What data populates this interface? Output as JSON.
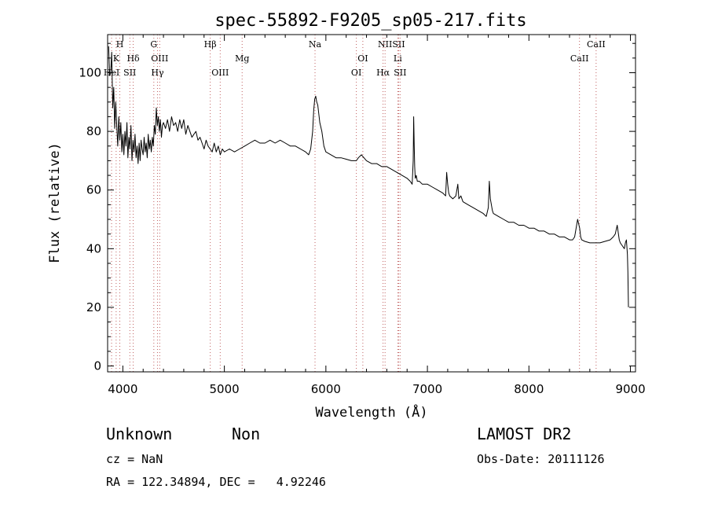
{
  "chart_data": {
    "type": "line",
    "title": "spec-55892-F9205_sp05-217.fits",
    "xlabel": "Wavelength (Å)",
    "ylabel": "Flux (relative)",
    "xlim": [
      3850,
      9050
    ],
    "ylim": [
      -2,
      113
    ],
    "x_ticks": [
      4000,
      5000,
      6000,
      7000,
      8000,
      9000
    ],
    "y_ticks": [
      0,
      20,
      40,
      60,
      80,
      100
    ],
    "grid": false,
    "series": [
      {
        "x": [
          3860,
          3870,
          3880,
          3890,
          3900,
          3910,
          3920,
          3930,
          3940,
          3950,
          3960,
          3970,
          3980,
          3990,
          4000,
          4010,
          4020,
          4030,
          4040,
          4050,
          4060,
          4070,
          4080,
          4090,
          4100,
          4110,
          4120,
          4130,
          4140,
          4150,
          4160,
          4170,
          4180,
          4190,
          4200,
          4210,
          4220,
          4230,
          4240,
          4250,
          4260,
          4270,
          4280,
          4290,
          4300,
          4310,
          4320,
          4330,
          4340,
          4350,
          4360,
          4370,
          4380,
          4390,
          4400,
          4420,
          4440,
          4460,
          4480,
          4500,
          4520,
          4540,
          4560,
          4580,
          4600,
          4620,
          4640,
          4660,
          4680,
          4700,
          4720,
          4740,
          4760,
          4780,
          4800,
          4820,
          4840,
          4860,
          4880,
          4900,
          4920,
          4940,
          4960,
          4980,
          5000,
          5050,
          5100,
          5150,
          5200,
          5250,
          5300,
          5350,
          5400,
          5450,
          5500,
          5550,
          5600,
          5650,
          5700,
          5750,
          5800,
          5830,
          5850,
          5870,
          5880,
          5890,
          5900,
          5910,
          5920,
          5930,
          5940,
          5960,
          5980,
          6000,
          6050,
          6100,
          6150,
          6200,
          6250,
          6280,
          6300,
          6320,
          6350,
          6400,
          6450,
          6500,
          6550,
          6600,
          6650,
          6700,
          6750,
          6800,
          6830,
          6850,
          6860,
          6865,
          6870,
          6875,
          6880,
          6890,
          6900,
          6920,
          6950,
          7000,
          7050,
          7100,
          7150,
          7180,
          7190,
          7200,
          7210,
          7220,
          7250,
          7280,
          7300,
          7310,
          7330,
          7350,
          7400,
          7450,
          7500,
          7550,
          7580,
          7600,
          7610,
          7620,
          7640,
          7650,
          7700,
          7750,
          7800,
          7850,
          7900,
          7950,
          8000,
          8050,
          8100,
          8150,
          8200,
          8250,
          8300,
          8350,
          8400,
          8430,
          8450,
          8480,
          8500,
          8510,
          8520,
          8550,
          8600,
          8650,
          8700,
          8750,
          8800,
          8830,
          8850,
          8870,
          8890,
          8900,
          8920,
          8940,
          8950,
          8960,
          8970,
          8975,
          8980
        ],
        "y": [
          109,
          99,
          100,
          107,
          88,
          95,
          81,
          90,
          82,
          75,
          85,
          77,
          83,
          73,
          79,
          72,
          80,
          75,
          83,
          71,
          78,
          74,
          82,
          70,
          77,
          73,
          79,
          71,
          75,
          69,
          76,
          70,
          77,
          74,
          72,
          78,
          73,
          76,
          71,
          79,
          74,
          77,
          73,
          78,
          75,
          82,
          79,
          88,
          82,
          85,
          80,
          84,
          78,
          82,
          83,
          81,
          84,
          80,
          85,
          82,
          83,
          80,
          84,
          81,
          84,
          79,
          82,
          80,
          78,
          79,
          80,
          77,
          78,
          76,
          74,
          77,
          75,
          74,
          73,
          76,
          73,
          75,
          72,
          74,
          73,
          74,
          73,
          74,
          75,
          76,
          77,
          76,
          76,
          77,
          76,
          77,
          76,
          75,
          75,
          74,
          73,
          72,
          74,
          80,
          87,
          91,
          92,
          90,
          89,
          86,
          83,
          80,
          75,
          73,
          72,
          71,
          71,
          70.5,
          70,
          70,
          70,
          71,
          72,
          70,
          69,
          69,
          68,
          68,
          67,
          66,
          65,
          64,
          63,
          62,
          70,
          85,
          75,
          68,
          64,
          65,
          63,
          63,
          62,
          62,
          61,
          60,
          59,
          58,
          66,
          62,
          59,
          58,
          57,
          58,
          62,
          57,
          58,
          56,
          55,
          54,
          53,
          52,
          51,
          54,
          63,
          57,
          53,
          52,
          51,
          50,
          49,
          49,
          48,
          48,
          47,
          47,
          46,
          46,
          45,
          45,
          44,
          44,
          43,
          43,
          44,
          50,
          47,
          44,
          43,
          42.5,
          42,
          42,
          42,
          42.5,
          43,
          44,
          45,
          48,
          43,
          42,
          41,
          40,
          42,
          43,
          38,
          32,
          20
        ]
      }
    ],
    "line_markers": [
      {
        "label": "H",
        "x": 3970,
        "row": 1
      },
      {
        "label": "K",
        "x": 3934,
        "row": 2
      },
      {
        "label": "HeI",
        "x": 3889,
        "row": 3
      },
      {
        "label": "Hδ",
        "x": 4102,
        "row": 2
      },
      {
        "label": "SII",
        "x": 4069,
        "row": 3
      },
      {
        "label": "G",
        "x": 4305,
        "row": 1
      },
      {
        "label": "OIII",
        "x": 4363,
        "row": 2
      },
      {
        "label": "Hγ",
        "x": 4341,
        "row": 3
      },
      {
        "label": "Hβ",
        "x": 4861,
        "row": 1
      },
      {
        "label": "OIII",
        "x": 4959,
        "row": 3
      },
      {
        "label": "Mg",
        "x": 5175,
        "row": 2
      },
      {
        "label": "Na",
        "x": 5893,
        "row": 1
      },
      {
        "label": "OI",
        "x": 6364,
        "row": 2
      },
      {
        "label": "OI",
        "x": 6300,
        "row": 3
      },
      {
        "label": "NII",
        "x": 6583,
        "row": 1
      },
      {
        "label": "Hα",
        "x": 6563,
        "row": 3
      },
      {
        "label": "SII",
        "x": 6717,
        "row": 1
      },
      {
        "label": "Li",
        "x": 6708,
        "row": 2
      },
      {
        "label": "SII",
        "x": 6731,
        "row": 3
      },
      {
        "label": "CaII",
        "x": 8662,
        "row": 1
      },
      {
        "label": "CaII",
        "x": 8498,
        "row": 2
      }
    ]
  },
  "info": {
    "class_label": "Unknown",
    "subclass_label": "Non",
    "survey": "LAMOST DR2",
    "cz": "cz = NaN",
    "obs_date": "Obs-Date: 20111126",
    "coords": "RA = 122.34894, DEC =   4.92246"
  }
}
